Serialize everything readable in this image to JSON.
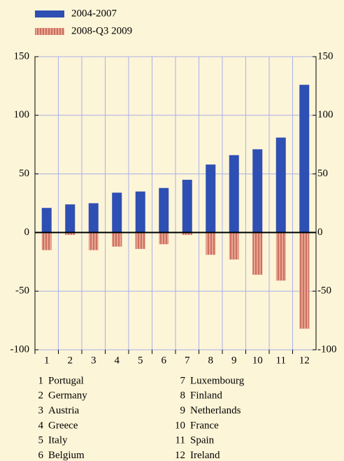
{
  "chart_data": {
    "type": "bar",
    "categories": [
      "1",
      "2",
      "3",
      "4",
      "5",
      "6",
      "7",
      "8",
      "9",
      "10",
      "11",
      "12"
    ],
    "series": [
      {
        "name": "2004-2007",
        "color": "#2e4fb3",
        "values": [
          21,
          24,
          25,
          34,
          35,
          38,
          45,
          58,
          66,
          71,
          81,
          126
        ]
      },
      {
        "name": "2008-Q3 2009",
        "color": "#e8a592",
        "values": [
          -15,
          -2,
          -15,
          -12,
          -14,
          -10,
          -2,
          -19,
          -23,
          -36,
          -41,
          -82
        ]
      }
    ],
    "ylim": [
      -100,
      150
    ],
    "yticks": [
      -100,
      -50,
      0,
      50,
      100,
      150
    ],
    "grid": true,
    "key": [
      {
        "number": "1",
        "name": "Portugal"
      },
      {
        "number": "2",
        "name": "Germany"
      },
      {
        "number": "3",
        "name": "Austria"
      },
      {
        "number": "4",
        "name": "Greece"
      },
      {
        "number": "5",
        "name": "Italy"
      },
      {
        "number": "6",
        "name": "Belgium"
      },
      {
        "number": "7",
        "name": "Luxembourg"
      },
      {
        "number": "8",
        "name": "Finland"
      },
      {
        "number": "9",
        "name": "Netherlands"
      },
      {
        "number": "10",
        "name": "France"
      },
      {
        "number": "11",
        "name": "Spain"
      },
      {
        "number": "12",
        "name": "Ireland"
      }
    ]
  }
}
